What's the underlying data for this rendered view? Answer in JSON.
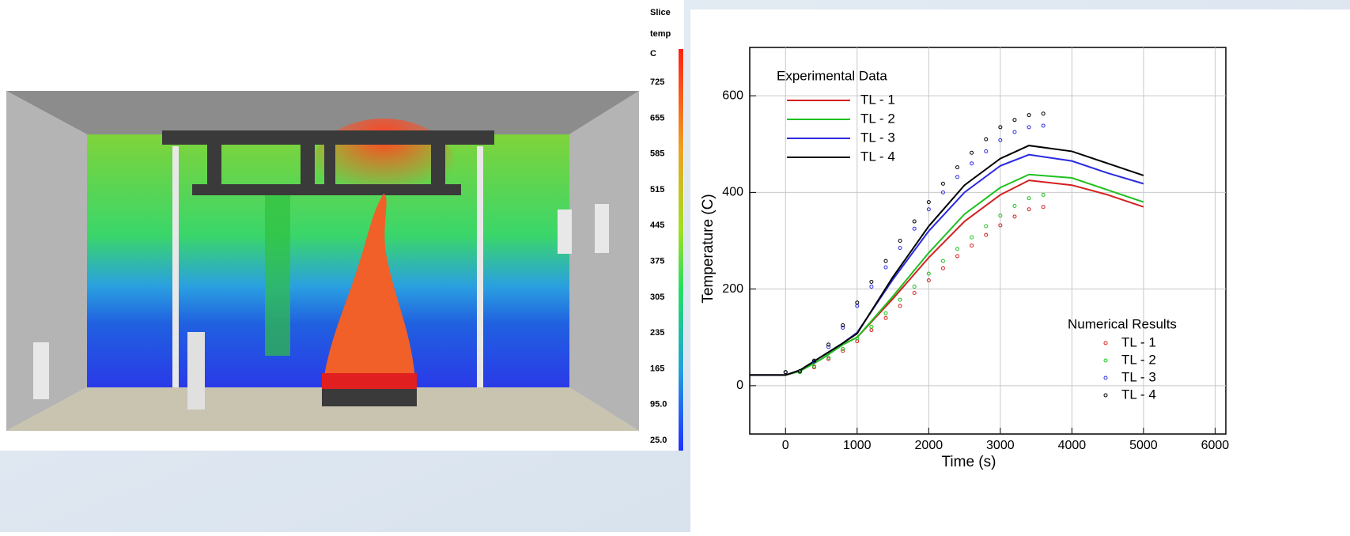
{
  "simulation": {
    "colorbar": {
      "labels": [
        "Slice",
        "temp",
        "C"
      ],
      "ticks": [
        725,
        655,
        585,
        515,
        445,
        375,
        305,
        235,
        165,
        {
          "value": 95,
          "label": "95.0"
        },
        {
          "value": 25,
          "label": "25.0"
        }
      ],
      "lim": [
        5,
        790
      ]
    }
  },
  "chart_data": {
    "type": "line",
    "x_label": "Time (s)",
    "y_label": "Temperature (C)",
    "xlim": [
      -500,
      6150
    ],
    "ylim": [
      -100,
      700
    ],
    "xticks": [
      0,
      1000,
      2000,
      3000,
      4000,
      5000,
      6000
    ],
    "yticks": [
      0,
      200,
      400,
      600
    ],
    "grid": true,
    "legend_titles": [
      "Experimental Data",
      "Numerical Results"
    ],
    "series": [
      {
        "name": "TL - 1",
        "color": "#d42020",
        "mode": "line",
        "x": [
          -500,
          0,
          200,
          500,
          800,
          1000,
          1500,
          2000,
          2500,
          3000,
          3400,
          4000,
          4500,
          5000
        ],
        "values": [
          22,
          22,
          30,
          55,
          85,
          100,
          180,
          265,
          340,
          395,
          425,
          415,
          395,
          370
        ]
      },
      {
        "name": "TL - 2",
        "color": "#20c020",
        "mode": "line",
        "x": [
          -500,
          0,
          200,
          500,
          800,
          1000,
          1500,
          2000,
          2500,
          3000,
          3400,
          4000,
          4500,
          5000
        ],
        "values": [
          22,
          22,
          30,
          55,
          85,
          100,
          185,
          275,
          355,
          410,
          437,
          430,
          405,
          380
        ]
      },
      {
        "name": "TL - 3",
        "color": "#2a2ae0",
        "mode": "line",
        "x": [
          -500,
          0,
          200,
          500,
          800,
          1000,
          1500,
          2000,
          2500,
          3000,
          3400,
          4000,
          4500,
          5000
        ],
        "values": [
          22,
          22,
          32,
          60,
          88,
          110,
          220,
          320,
          400,
          455,
          478,
          465,
          440,
          418
        ]
      },
      {
        "name": "TL - 4",
        "color": "#000000",
        "mode": "line",
        "x": [
          -500,
          0,
          200,
          500,
          800,
          1000,
          1500,
          2000,
          2500,
          3000,
          3400,
          4000,
          4500,
          5000
        ],
        "values": [
          22,
          22,
          32,
          60,
          88,
          108,
          225,
          330,
          415,
          470,
          497,
          485,
          460,
          435
        ]
      },
      {
        "name": "TL - 1",
        "color": "#d42020",
        "mode": "markers",
        "x": [
          0,
          200,
          400,
          600,
          800,
          1000,
          1200,
          1400,
          1600,
          1800,
          2000,
          2200,
          2400,
          2600,
          2800,
          3000,
          3200,
          3400,
          3600
        ],
        "values": [
          28,
          28,
          38,
          55,
          72,
          92,
          115,
          140,
          165,
          192,
          218,
          243,
          268,
          290,
          312,
          332,
          350,
          365,
          370
        ]
      },
      {
        "name": "TL - 2",
        "color": "#20c020",
        "mode": "markers",
        "x": [
          0,
          200,
          400,
          600,
          800,
          1000,
          1200,
          1400,
          1600,
          1800,
          2000,
          2200,
          2400,
          2600,
          2800,
          3000,
          3200,
          3400,
          3600
        ],
        "values": [
          28,
          28,
          40,
          58,
          76,
          98,
          122,
          150,
          178,
          205,
          232,
          258,
          283,
          307,
          330,
          352,
          372,
          388,
          395
        ]
      },
      {
        "name": "TL - 3",
        "color": "#2a2ae0",
        "mode": "markers",
        "x": [
          0,
          200,
          400,
          600,
          800,
          1000,
          1200,
          1400,
          1600,
          1800,
          2000,
          2200,
          2400,
          2600,
          2800,
          3000,
          3200,
          3400,
          3600
        ],
        "values": [
          28,
          30,
          50,
          80,
          120,
          165,
          205,
          245,
          285,
          325,
          365,
          400,
          432,
          460,
          485,
          508,
          525,
          535,
          538
        ]
      },
      {
        "name": "TL - 4",
        "color": "#000000",
        "mode": "markers",
        "x": [
          0,
          200,
          400,
          600,
          800,
          1000,
          1200,
          1400,
          1600,
          1800,
          2000,
          2200,
          2400,
          2600,
          2800,
          3000,
          3200,
          3400,
          3600
        ],
        "values": [
          28,
          30,
          52,
          85,
          125,
          172,
          215,
          258,
          300,
          340,
          380,
          418,
          452,
          482,
          510,
          535,
          550,
          560,
          563
        ]
      }
    ]
  }
}
